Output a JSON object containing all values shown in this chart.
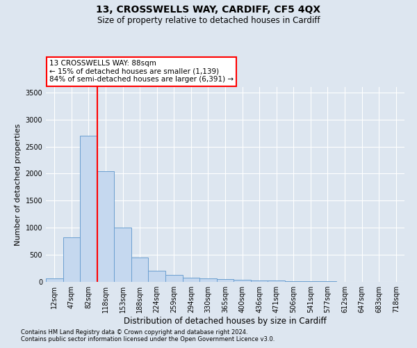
{
  "title1": "13, CROSSWELLS WAY, CARDIFF, CF5 4QX",
  "title2": "Size of property relative to detached houses in Cardiff",
  "xlabel": "Distribution of detached houses by size in Cardiff",
  "ylabel": "Number of detached properties",
  "footnote1": "Contains HM Land Registry data © Crown copyright and database right 2024.",
  "footnote2": "Contains public sector information licensed under the Open Government Licence v3.0.",
  "bar_labels": [
    "12sqm",
    "47sqm",
    "82sqm",
    "118sqm",
    "153sqm",
    "188sqm",
    "224sqm",
    "259sqm",
    "294sqm",
    "330sqm",
    "365sqm",
    "400sqm",
    "436sqm",
    "471sqm",
    "506sqm",
    "541sqm",
    "577sqm",
    "612sqm",
    "647sqm",
    "683sqm",
    "718sqm"
  ],
  "bar_values": [
    60,
    820,
    2700,
    2050,
    1000,
    450,
    200,
    130,
    75,
    60,
    50,
    35,
    25,
    20,
    15,
    10,
    8,
    5,
    4,
    3,
    2
  ],
  "bar_color": "#c5d8ef",
  "bar_edge_color": "#6a9fd0",
  "annotation_line1": "13 CROSSWELLS WAY: 88sqm",
  "annotation_line2": "← 15% of detached houses are smaller (1,139)",
  "annotation_line3": "84% of semi-detached houses are larger (6,391) →",
  "red_line_x": 2.5,
  "ylim": [
    0,
    3600
  ],
  "yticks": [
    0,
    500,
    1000,
    1500,
    2000,
    2500,
    3000,
    3500
  ],
  "bg_color": "#dde6f0",
  "grid_color": "#ffffff",
  "title1_fontsize": 10,
  "title2_fontsize": 8.5,
  "ylabel_fontsize": 8,
  "xlabel_fontsize": 8.5,
  "tick_fontsize": 7,
  "annot_fontsize": 7.5,
  "footnote_fontsize": 6
}
